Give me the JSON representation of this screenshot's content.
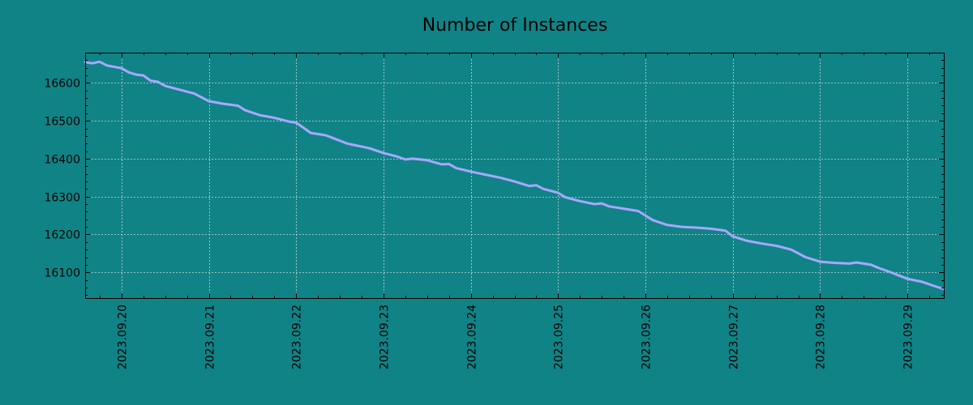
{
  "chart_data": {
    "type": "line",
    "title": "Number of Instances",
    "xlabel": "",
    "ylabel": "",
    "x_range": [
      "2023-09-19T14:00",
      "2023-09-29T10:00"
    ],
    "ylim": [
      16032,
      16680
    ],
    "y_ticks": [
      16100,
      16200,
      16300,
      16400,
      16500,
      16600
    ],
    "x_ticks": [
      "2023.09.20",
      "2023.09.21",
      "2023.09.22",
      "2023.09.23",
      "2023.09.24",
      "2023.09.25",
      "2023.09.26",
      "2023.09.27",
      "2023.09.28",
      "2023.09.29"
    ],
    "x_tick_dates": [
      "2023-09-20T00:00",
      "2023-09-21T00:00",
      "2023-09-22T00:00",
      "2023-09-23T00:00",
      "2023-09-24T00:00",
      "2023-09-25T00:00",
      "2023-09-26T00:00",
      "2023-09-27T00:00",
      "2023-09-28T00:00",
      "2023-09-29T00:00"
    ],
    "grid": true,
    "colors": {
      "background": "#108386",
      "line": "#a8a8ff"
    },
    "series": [
      {
        "name": "",
        "points": [
          [
            "2023-09-19T14:00",
            16655
          ],
          [
            "2023-09-19T16:00",
            16652
          ],
          [
            "2023-09-19T18:00",
            16656
          ],
          [
            "2023-09-19T20:00",
            16646
          ],
          [
            "2023-09-20T00:00",
            16639
          ],
          [
            "2023-09-20T02:00",
            16628
          ],
          [
            "2023-09-20T04:00",
            16622
          ],
          [
            "2023-09-20T06:00",
            16620
          ],
          [
            "2023-09-20T08:00",
            16606
          ],
          [
            "2023-09-20T10:00",
            16603
          ],
          [
            "2023-09-20T12:00",
            16592
          ],
          [
            "2023-09-20T16:00",
            16582
          ],
          [
            "2023-09-20T20:00",
            16572
          ],
          [
            "2023-09-21T00:00",
            16552
          ],
          [
            "2023-09-21T04:00",
            16545
          ],
          [
            "2023-09-21T08:00",
            16540
          ],
          [
            "2023-09-21T10:00",
            16528
          ],
          [
            "2023-09-21T14:00",
            16515
          ],
          [
            "2023-09-21T18:00",
            16508
          ],
          [
            "2023-09-21T22:00",
            16498
          ],
          [
            "2023-09-22T00:00",
            16495
          ],
          [
            "2023-09-22T02:00",
            16482
          ],
          [
            "2023-09-22T04:00",
            16468
          ],
          [
            "2023-09-22T08:00",
            16462
          ],
          [
            "2023-09-22T10:00",
            16455
          ],
          [
            "2023-09-22T14:00",
            16440
          ],
          [
            "2023-09-22T16:00",
            16436
          ],
          [
            "2023-09-22T20:00",
            16428
          ],
          [
            "2023-09-23T00:00",
            16415
          ],
          [
            "2023-09-23T04:00",
            16405
          ],
          [
            "2023-09-23T06:00",
            16398
          ],
          [
            "2023-09-23T08:00",
            16400
          ],
          [
            "2023-09-23T12:00",
            16396
          ],
          [
            "2023-09-23T16:00",
            16385
          ],
          [
            "2023-09-23T18:00",
            16386
          ],
          [
            "2023-09-23T20:00",
            16375
          ],
          [
            "2023-09-24T00:00",
            16366
          ],
          [
            "2023-09-24T04:00",
            16358
          ],
          [
            "2023-09-24T08:00",
            16350
          ],
          [
            "2023-09-24T12:00",
            16340
          ],
          [
            "2023-09-24T16:00",
            16328
          ],
          [
            "2023-09-24T18:00",
            16330
          ],
          [
            "2023-09-24T20:00",
            16320
          ],
          [
            "2023-09-25T00:00",
            16310
          ],
          [
            "2023-09-25T02:00",
            16298
          ],
          [
            "2023-09-25T06:00",
            16288
          ],
          [
            "2023-09-25T10:00",
            16280
          ],
          [
            "2023-09-25T12:00",
            16282
          ],
          [
            "2023-09-25T14:00",
            16274
          ],
          [
            "2023-09-25T18:00",
            16268
          ],
          [
            "2023-09-25T22:00",
            16262
          ],
          [
            "2023-09-26T02:00",
            16238
          ],
          [
            "2023-09-26T06:00",
            16225
          ],
          [
            "2023-09-26T10:00",
            16220
          ],
          [
            "2023-09-26T14:00",
            16218
          ],
          [
            "2023-09-26T18:00",
            16215
          ],
          [
            "2023-09-26T22:00",
            16210
          ],
          [
            "2023-09-27T00:00",
            16195
          ],
          [
            "2023-09-27T04:00",
            16183
          ],
          [
            "2023-09-27T08:00",
            16176
          ],
          [
            "2023-09-27T12:00",
            16170
          ],
          [
            "2023-09-27T16:00",
            16160
          ],
          [
            "2023-09-27T20:00",
            16140
          ],
          [
            "2023-09-28T00:00",
            16128
          ],
          [
            "2023-09-28T04:00",
            16125
          ],
          [
            "2023-09-28T08:00",
            16123
          ],
          [
            "2023-09-28T10:00",
            16126
          ],
          [
            "2023-09-28T14:00",
            16120
          ],
          [
            "2023-09-28T16:00",
            16112
          ],
          [
            "2023-09-28T20:00",
            16098
          ],
          [
            "2023-09-29T00:00",
            16083
          ],
          [
            "2023-09-29T04:00",
            16075
          ],
          [
            "2023-09-29T08:00",
            16062
          ],
          [
            "2023-09-29T10:00",
            16056
          ]
        ]
      }
    ]
  }
}
